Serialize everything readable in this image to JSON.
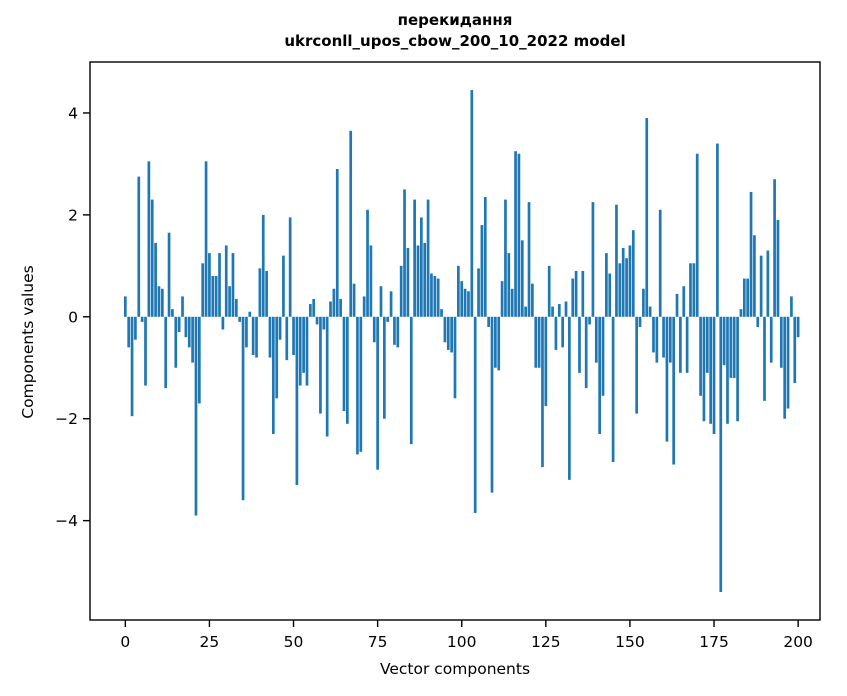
{
  "title": {
    "line1": "перекидання",
    "line2": "ukrconll_upos_cbow_200_10_2022 model"
  },
  "chart_data": {
    "type": "bar",
    "title": "перекидання",
    "subtitle": "ukrconll_upos_cbow_200_10_2022 model",
    "xlabel": "Vector components",
    "ylabel": "Components values",
    "bar_color": "#1f77b4",
    "axis_color": "#000000",
    "xlim": [
      -10.5,
      206.5
    ],
    "ylim": [
      -5.95,
      5.0
    ],
    "xticks": [
      0,
      25,
      50,
      75,
      100,
      125,
      150,
      175,
      200
    ],
    "xtick_labels": [
      "0",
      "25",
      "50",
      "75",
      "100",
      "125",
      "150",
      "175",
      "200"
    ],
    "yticks": [
      -4,
      -2,
      0,
      2,
      4
    ],
    "ytick_labels": [
      "−4",
      "−2",
      "0",
      "2",
      "4"
    ],
    "grid": false,
    "legend": null,
    "x_start": 0,
    "values": [
      0.4,
      -0.6,
      -1.95,
      -0.45,
      2.75,
      -0.1,
      -1.35,
      3.05,
      2.3,
      1.45,
      0.6,
      0.55,
      -1.4,
      1.65,
      0.15,
      -1.0,
      -0.3,
      0.4,
      -0.4,
      -0.6,
      -0.9,
      -3.9,
      -1.7,
      1.05,
      3.05,
      1.25,
      0.8,
      0.8,
      1.25,
      -0.25,
      1.4,
      0.6,
      1.25,
      0.35,
      -0.1,
      -3.6,
      -0.6,
      0.1,
      -0.75,
      -0.8,
      0.95,
      2.0,
      0.9,
      -0.8,
      -2.3,
      -1.6,
      -0.45,
      1.2,
      -0.85,
      1.95,
      -0.75,
      -3.3,
      -1.35,
      -1.1,
      -1.35,
      0.25,
      0.35,
      -0.15,
      -1.9,
      -0.25,
      -2.35,
      0.3,
      0.55,
      2.9,
      0.35,
      -1.85,
      -2.1,
      3.65,
      0.65,
      -2.7,
      -2.65,
      0.4,
      2.1,
      1.4,
      -0.5,
      -3.0,
      0.6,
      -2.0,
      -0.1,
      0.5,
      -0.55,
      -0.6,
      1.0,
      2.5,
      1.35,
      -2.5,
      2.3,
      1.4,
      1.95,
      1.45,
      2.3,
      0.85,
      0.8,
      0.75,
      0.15,
      -0.5,
      -0.65,
      -0.7,
      -1.6,
      1.0,
      0.7,
      0.55,
      0.5,
      4.45,
      -3.85,
      0.95,
      1.8,
      2.35,
      -0.2,
      -3.45,
      -1.0,
      -1.05,
      0.7,
      2.3,
      1.25,
      0.55,
      3.25,
      3.2,
      1.5,
      0.2,
      2.25,
      0.65,
      -1.0,
      -1.0,
      -2.95,
      -1.75,
      1.0,
      0.2,
      -0.65,
      0.25,
      -0.6,
      0.3,
      -3.2,
      0.75,
      0.9,
      -1.1,
      0.9,
      -1.4,
      -0.15,
      2.25,
      -0.9,
      -2.3,
      -1.55,
      1.25,
      0.85,
      -2.85,
      2.2,
      1.05,
      1.35,
      1.15,
      1.4,
      1.7,
      -1.9,
      -0.2,
      0.55,
      3.9,
      0.2,
      -0.7,
      -0.9,
      2.1,
      -0.8,
      -2.45,
      -0.9,
      -2.9,
      0.45,
      -1.1,
      0.6,
      -1.1,
      1.05,
      1.05,
      3.2,
      -1.55,
      -2.05,
      -1.1,
      -2.1,
      -2.3,
      3.4,
      -5.4,
      -0.95,
      -2.1,
      -1.2,
      -1.2,
      -2.05,
      0.15,
      0.75,
      0.75,
      2.45,
      1.6,
      -0.2,
      1.2,
      -1.65,
      1.3,
      -0.9,
      2.7,
      1.9,
      -1.0,
      -2.0,
      -1.8,
      0.4,
      -1.3,
      -0.4
    ]
  }
}
